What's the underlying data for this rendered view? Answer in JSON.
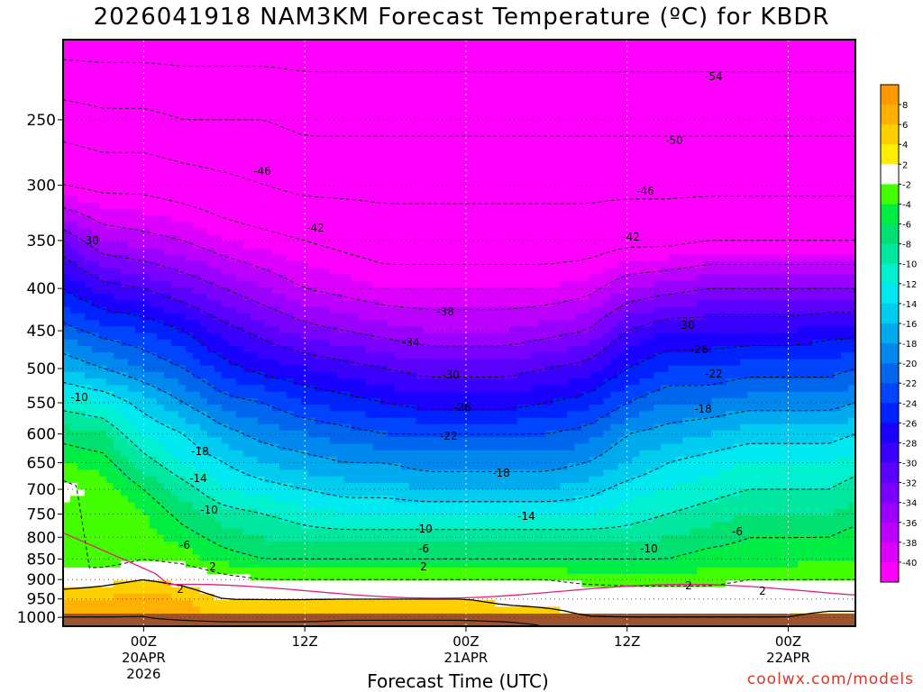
{
  "header": {
    "title": "2026041918 NAM3KM Forecast Temperature (ºC) for KBDR"
  },
  "footer": {
    "credit": "coolwx.com/models"
  },
  "chart_data": {
    "type": "heatmap",
    "title": "2026041918 NAM3KM Forecast Temperature (ºC) for KBDR",
    "xlabel": "Forecast Time (UTC)",
    "ylabel": "",
    "x_range_hours_from_init": [
      0,
      59
    ],
    "y_range_hPa": [
      200,
      1025
    ],
    "y_scale": "log-pressure (inverted)",
    "grid": true,
    "y_ticks": [
      250,
      300,
      350,
      400,
      450,
      500,
      550,
      600,
      650,
      700,
      750,
      800,
      850,
      900,
      950,
      1000
    ],
    "x_ticks": [
      {
        "hours": 6,
        "lines": [
          "00Z",
          "20APR",
          "2026"
        ]
      },
      {
        "hours": 18,
        "lines": [
          "12Z"
        ]
      },
      {
        "hours": 30,
        "lines": [
          "00Z",
          "21APR"
        ]
      },
      {
        "hours": 42,
        "lines": [
          "12Z"
        ]
      },
      {
        "hours": 54,
        "lines": [
          "00Z",
          "22APR"
        ]
      }
    ],
    "colorbar": {
      "labels": [
        "8",
        "6",
        "4",
        "2",
        "-2",
        "-4",
        "-6",
        "-8",
        "-10",
        "-12",
        "-14",
        "-16",
        "-18",
        "-20",
        "-22",
        "-24",
        "-26",
        "-28",
        "-30",
        "-32",
        "-34",
        "-36",
        "-38",
        "-40"
      ],
      "colors": [
        "#ff9900",
        "#ffb000",
        "#ffd000",
        "#ffee00",
        "#ffffff",
        "#44ff00",
        "#00ee44",
        "#00e070",
        "#00e8a0",
        "#00f0d0",
        "#00e8f0",
        "#00ccf0",
        "#00aaee",
        "#0088ee",
        "#0066ee",
        "#0044ff",
        "#0022ff",
        "#1a00ff",
        "#3a00ff",
        "#5a00ff",
        "#7a00ff",
        "#9a00ff",
        "#bb00ff",
        "#dd00ff",
        "#ff00ff"
      ]
    },
    "profiles": {
      "times_hours": [
        0,
        3,
        6,
        9,
        12,
        15,
        18,
        21,
        24,
        27,
        30,
        33,
        36,
        39,
        42,
        45,
        48,
        51,
        54,
        57,
        59
      ],
      "levels_hPa": [
        200,
        250,
        300,
        350,
        400,
        450,
        500,
        550,
        600,
        650,
        700,
        750,
        800,
        850,
        900,
        950,
        1000,
        1025
      ],
      "temperature_C": [
        [
          -56,
          -48,
          -42,
          -32,
          -26,
          -21,
          -16,
          -11,
          -7,
          -4,
          -1,
          -3,
          -4,
          -4,
          0,
          4,
          6,
          8
        ],
        [
          -56,
          -49,
          -43,
          -36,
          -29,
          -23,
          -18,
          -12,
          -8,
          -5,
          -3,
          -2,
          -3,
          -4,
          1,
          4,
          6,
          8
        ],
        [
          -56,
          -49,
          -43,
          -37,
          -30,
          -24,
          -20,
          -15,
          -12,
          -9,
          -6,
          -4,
          -3,
          -2,
          2,
          5,
          6,
          8
        ],
        [
          -56,
          -50,
          -44,
          -38,
          -32,
          -26,
          -22,
          -18,
          -14,
          -12,
          -9,
          -7,
          -5,
          -3,
          1,
          4,
          5,
          8
        ],
        [
          -56,
          -50,
          -45,
          -40,
          -34,
          -29,
          -25,
          -21,
          -17,
          -14,
          -12,
          -9,
          -7,
          -5,
          -1,
          2,
          4,
          8
        ],
        [
          -56,
          -50,
          -46,
          -41,
          -36,
          -31,
          -27,
          -22,
          -19,
          -16,
          -13,
          -10,
          -8,
          -6,
          -2,
          2,
          4,
          8
        ],
        [
          -56,
          -51,
          -47,
          -42,
          -38,
          -33,
          -28,
          -24,
          -20,
          -17,
          -14,
          -11,
          -9,
          -6,
          -2,
          2,
          4,
          8
        ],
        [
          -56,
          -51,
          -47,
          -43,
          -39,
          -34,
          -29,
          -25,
          -21,
          -18,
          -15,
          -12,
          -9,
          -6,
          -2,
          2,
          5,
          8
        ],
        [
          -56,
          -51,
          -47,
          -44,
          -40,
          -35,
          -30,
          -26,
          -22,
          -18,
          -15,
          -12,
          -9,
          -6,
          -2,
          2,
          5,
          8
        ],
        [
          -56,
          -51,
          -47,
          -44,
          -40,
          -36,
          -31,
          -27,
          -22,
          -19,
          -16,
          -12,
          -9,
          -6,
          -2,
          2,
          5,
          8
        ],
        [
          -56,
          -51,
          -47,
          -44,
          -40,
          -36,
          -31,
          -27,
          -22,
          -19,
          -16,
          -12,
          -9,
          -6,
          -2,
          2,
          5,
          8
        ],
        [
          -56,
          -51,
          -47,
          -44,
          -40,
          -36,
          -31,
          -27,
          -22,
          -19,
          -16,
          -12,
          -9,
          -6,
          -2,
          1,
          4,
          8
        ],
        [
          -56,
          -51,
          -47,
          -44,
          -40,
          -35,
          -30,
          -26,
          -22,
          -19,
          -16,
          -12,
          -9,
          -6,
          -2,
          1,
          3,
          6
        ],
        [
          -56,
          -51,
          -47,
          -44,
          -39,
          -34,
          -29,
          -25,
          -21,
          -18,
          -15,
          -12,
          -9,
          -6,
          -3,
          1,
          2,
          5
        ],
        [
          -56,
          -51,
          -47,
          -43,
          -36,
          -30,
          -26,
          -22,
          -18,
          -16,
          -13,
          -11,
          -9,
          -6,
          -3,
          0,
          2,
          4
        ],
        [
          -56,
          -51,
          -47,
          -43,
          -35,
          -28,
          -24,
          -20,
          -17,
          -14,
          -12,
          -10,
          -8,
          -6,
          -3,
          0,
          2,
          4
        ],
        [
          -56,
          -51,
          -47,
          -42,
          -34,
          -28,
          -24,
          -20,
          -16,
          -13,
          -11,
          -9,
          -7,
          -5,
          -3,
          0,
          2,
          4
        ],
        [
          -56,
          -51,
          -47,
          -42,
          -34,
          -28,
          -23,
          -19,
          -15,
          -12,
          -10,
          -8,
          -6,
          -5,
          -2,
          0,
          2,
          4
        ],
        [
          -56,
          -51,
          -47,
          -42,
          -34,
          -28,
          -23,
          -19,
          -15,
          -12,
          -10,
          -8,
          -6,
          -5,
          -2,
          0,
          2,
          4
        ],
        [
          -56,
          -51,
          -47,
          -42,
          -34,
          -27,
          -23,
          -19,
          -15,
          -12,
          -10,
          -8,
          -6,
          -4,
          -2,
          0,
          3,
          5
        ],
        [
          -56,
          -51,
          -47,
          -42,
          -34,
          -27,
          -22,
          -18,
          -14,
          -11,
          -9,
          -7,
          -5,
          -4,
          -2,
          0,
          3,
          5
        ]
      ]
    },
    "contour_labels": [
      "-54",
      "-50",
      "-46",
      "-46",
      "-42",
      "-42",
      "-38",
      "-34",
      "-30",
      "-30",
      "-30",
      "-26",
      "-26",
      "-22",
      "-22",
      "-18",
      "-18",
      "-18",
      "-14",
      "-14",
      "-10",
      "-10",
      "-10",
      "-10",
      "-6",
      "-6",
      "-6",
      "2",
      "2",
      "2",
      "2",
      "2",
      "2"
    ]
  }
}
